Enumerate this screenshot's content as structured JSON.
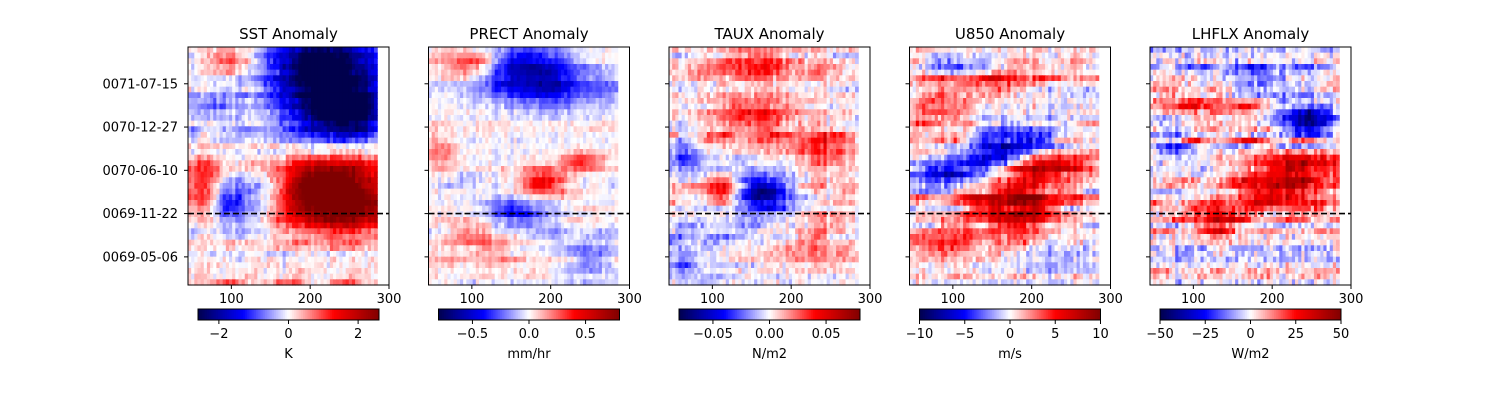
{
  "chart_data": [
    {
      "type": "heatmap",
      "title": "SST Anomaly",
      "xticks": [
        100,
        200,
        300
      ],
      "xlim": [
        45,
        300
      ],
      "data_x_range": [
        45,
        285
      ],
      "yticks": [
        "0069-05-06",
        "0069-11-22",
        "0070-06-10",
        "0070-12-27",
        "0071-07-15"
      ],
      "show_ytick_labels": true,
      "reference_line": "0069-11-22",
      "colorbar": {
        "label": "K",
        "range": [
          -2.6,
          2.6
        ],
        "ticks": [
          -2,
          0,
          2
        ],
        "tick_labels": [
          "−2",
          "0",
          "2"
        ]
      },
      "colormap": "seismic",
      "features": [
        {
          "x": 230,
          "y": 0.8,
          "sx": 50,
          "sy": 0.14,
          "a": -1.0
        },
        {
          "x": 250,
          "y": 0.71,
          "sx": 30,
          "sy": 0.06,
          "a": -0.5
        },
        {
          "x": 210,
          "y": 0.95,
          "sx": 45,
          "sy": 0.1,
          "a": -0.6
        },
        {
          "x": 230,
          "y": 0.42,
          "sx": 55,
          "sy": 0.1,
          "a": 1.0
        },
        {
          "x": 215,
          "y": 0.43,
          "sx": 25,
          "sy": 0.05,
          "a": 0.4
        },
        {
          "x": 240,
          "y": 0.3,
          "sx": 60,
          "sy": 0.07,
          "a": 0.6
        },
        {
          "x": 65,
          "y": 0.42,
          "sx": 18,
          "sy": 0.08,
          "a": 0.5
        },
        {
          "x": 135,
          "y": 0.35,
          "sx": 25,
          "sy": 0.08,
          "a": -0.4
        },
        {
          "x": 95,
          "y": 0.34,
          "sx": 15,
          "sy": 0.06,
          "a": -0.5
        },
        {
          "x": 100,
          "y": 0.95,
          "sx": 20,
          "sy": 0.04,
          "a": 0.4
        },
        {
          "x": 75,
          "y": 0.75,
          "sx": 20,
          "sy": 0.05,
          "a": -0.3
        }
      ],
      "noise": 0.28
    },
    {
      "type": "heatmap",
      "title": "PRECT Anomaly",
      "xticks": [
        100,
        200,
        300
      ],
      "xlim": [
        45,
        300
      ],
      "data_x_range": [
        45,
        285
      ],
      "yticks": [
        "0069-05-06",
        "0069-11-22",
        "0070-06-10",
        "0070-12-27",
        "0071-07-15"
      ],
      "show_ytick_labels": false,
      "reference_line": "0069-11-22",
      "colorbar": {
        "label": "mm/hr",
        "range": [
          -0.8,
          0.8
        ],
        "ticks": [
          -0.5,
          0.0,
          0.5
        ],
        "tick_labels": [
          "−0.5",
          "0.0",
          "0.5"
        ]
      },
      "colormap": "seismic",
      "features": [
        {
          "x": 165,
          "y": 0.92,
          "sx": 40,
          "sy": 0.07,
          "a": -0.6
        },
        {
          "x": 200,
          "y": 0.83,
          "sx": 55,
          "sy": 0.07,
          "a": -0.45
        },
        {
          "x": 100,
          "y": 0.93,
          "sx": 25,
          "sy": 0.04,
          "a": 0.5
        },
        {
          "x": 190,
          "y": 0.43,
          "sx": 25,
          "sy": 0.04,
          "a": 0.6
        },
        {
          "x": 240,
          "y": 0.52,
          "sx": 25,
          "sy": 0.03,
          "a": 0.4
        },
        {
          "x": 155,
          "y": 0.3,
          "sx": 30,
          "sy": 0.05,
          "a": -0.5
        },
        {
          "x": 110,
          "y": 0.2,
          "sx": 35,
          "sy": 0.05,
          "a": 0.35
        },
        {
          "x": 250,
          "y": 0.1,
          "sx": 25,
          "sy": 0.06,
          "a": -0.3
        },
        {
          "x": 60,
          "y": 0.55,
          "sx": 15,
          "sy": 0.05,
          "a": 0.3
        }
      ],
      "noise": 0.22
    },
    {
      "type": "heatmap",
      "title": "TAUX Anomaly",
      "xticks": [
        100,
        200,
        300
      ],
      "xlim": [
        45,
        300
      ],
      "data_x_range": [
        45,
        285
      ],
      "yticks": [
        "0069-05-06",
        "0069-11-22",
        "0070-06-10",
        "0070-12-27",
        "0071-07-15"
      ],
      "show_ytick_labels": false,
      "reference_line": "0069-11-22",
      "colorbar": {
        "label": "N/m2",
        "range": [
          -0.08,
          0.08
        ],
        "ticks": [
          -0.05,
          0.0,
          0.05
        ],
        "tick_labels": [
          "−0.05",
          "0.00",
          "0.05"
        ]
      },
      "colormap": "seismic",
      "features": [
        {
          "x": 170,
          "y": 0.37,
          "sx": 30,
          "sy": 0.07,
          "a": -0.6
        },
        {
          "x": 160,
          "y": 0.4,
          "sx": 15,
          "sy": 0.03,
          "a": -0.5
        },
        {
          "x": 110,
          "y": 0.4,
          "sx": 12,
          "sy": 0.04,
          "a": 0.6
        },
        {
          "x": 150,
          "y": 0.72,
          "sx": 45,
          "sy": 0.06,
          "a": 0.45
        },
        {
          "x": 150,
          "y": 0.93,
          "sx": 45,
          "sy": 0.05,
          "a": 0.4
        },
        {
          "x": 240,
          "y": 0.55,
          "sx": 35,
          "sy": 0.06,
          "a": 0.35
        },
        {
          "x": 230,
          "y": 0.2,
          "sx": 40,
          "sy": 0.08,
          "a": 0.3
        },
        {
          "x": 65,
          "y": 0.55,
          "sx": 15,
          "sy": 0.06,
          "a": -0.35
        },
        {
          "x": 60,
          "y": 0.1,
          "sx": 15,
          "sy": 0.05,
          "a": -0.3
        }
      ],
      "noise": 0.33
    },
    {
      "type": "heatmap",
      "title": "U850 Anomaly",
      "xticks": [
        100,
        200,
        300
      ],
      "xlim": [
        45,
        300
      ],
      "data_x_range": [
        45,
        285
      ],
      "yticks": [
        "0069-05-06",
        "0069-11-22",
        "0070-06-10",
        "0070-12-27",
        "0071-07-15"
      ],
      "show_ytick_labels": false,
      "reference_line": "0069-11-22",
      "colorbar": {
        "label": "m/s",
        "range": [
          -10,
          10
        ],
        "ticks": [
          -10,
          -5,
          0,
          5,
          10
        ],
        "tick_labels": [
          "−10",
          "−5",
          "0",
          "5",
          "10"
        ]
      },
      "colormap": "seismic",
      "features": [
        {
          "x": 180,
          "y": 0.33,
          "sx": 45,
          "sy": 0.09,
          "a": 0.9
        },
        {
          "x": 220,
          "y": 0.5,
          "sx": 40,
          "sy": 0.04,
          "a": 0.7
        },
        {
          "x": 100,
          "y": 0.47,
          "sx": 40,
          "sy": 0.04,
          "a": -0.6
        },
        {
          "x": 180,
          "y": 0.6,
          "sx": 40,
          "sy": 0.05,
          "a": -0.7
        },
        {
          "x": 150,
          "y": 0.53,
          "sx": 30,
          "sy": 0.03,
          "a": -0.5
        },
        {
          "x": 110,
          "y": 0.92,
          "sx": 30,
          "sy": 0.03,
          "a": -0.5
        },
        {
          "x": 150,
          "y": 0.85,
          "sx": 40,
          "sy": 0.05,
          "a": 0.35
        },
        {
          "x": 80,
          "y": 0.75,
          "sx": 25,
          "sy": 0.06,
          "a": 0.4
        },
        {
          "x": 80,
          "y": 0.2,
          "sx": 25,
          "sy": 0.06,
          "a": 0.3
        },
        {
          "x": 230,
          "y": 0.15,
          "sx": 35,
          "sy": 0.06,
          "a": -0.3
        }
      ],
      "noise": 0.35
    },
    {
      "type": "heatmap",
      "title": "LHFLX Anomaly",
      "xticks": [
        100,
        200,
        300
      ],
      "xlim": [
        45,
        300
      ],
      "data_x_range": [
        45,
        285
      ],
      "yticks": [
        "0069-05-06",
        "0069-11-22",
        "0070-06-10",
        "0070-12-27",
        "0071-07-15"
      ],
      "show_ytick_labels": false,
      "reference_line": "0069-11-22",
      "colorbar": {
        "label": "W/m2",
        "range": [
          -50,
          50
        ],
        "ticks": [
          -50,
          -25,
          0,
          25,
          50
        ],
        "tick_labels": [
          "−50",
          "−25",
          "0",
          "25",
          "50"
        ]
      },
      "colormap": "seismic",
      "features": [
        {
          "x": 245,
          "y": 0.7,
          "sx": 22,
          "sy": 0.06,
          "a": -0.8
        },
        {
          "x": 220,
          "y": 0.45,
          "sx": 45,
          "sy": 0.06,
          "a": 0.55
        },
        {
          "x": 240,
          "y": 0.52,
          "sx": 40,
          "sy": 0.03,
          "a": 0.5
        },
        {
          "x": 130,
          "y": 0.27,
          "sx": 20,
          "sy": 0.05,
          "a": 0.55
        },
        {
          "x": 200,
          "y": 0.37,
          "sx": 40,
          "sy": 0.04,
          "a": 0.4
        },
        {
          "x": 120,
          "y": 0.75,
          "sx": 40,
          "sy": 0.05,
          "a": 0.3
        },
        {
          "x": 180,
          "y": 0.85,
          "sx": 35,
          "sy": 0.05,
          "a": -0.35
        },
        {
          "x": 70,
          "y": 0.6,
          "sx": 15,
          "sy": 0.05,
          "a": -0.35
        }
      ],
      "noise": 0.45
    }
  ]
}
